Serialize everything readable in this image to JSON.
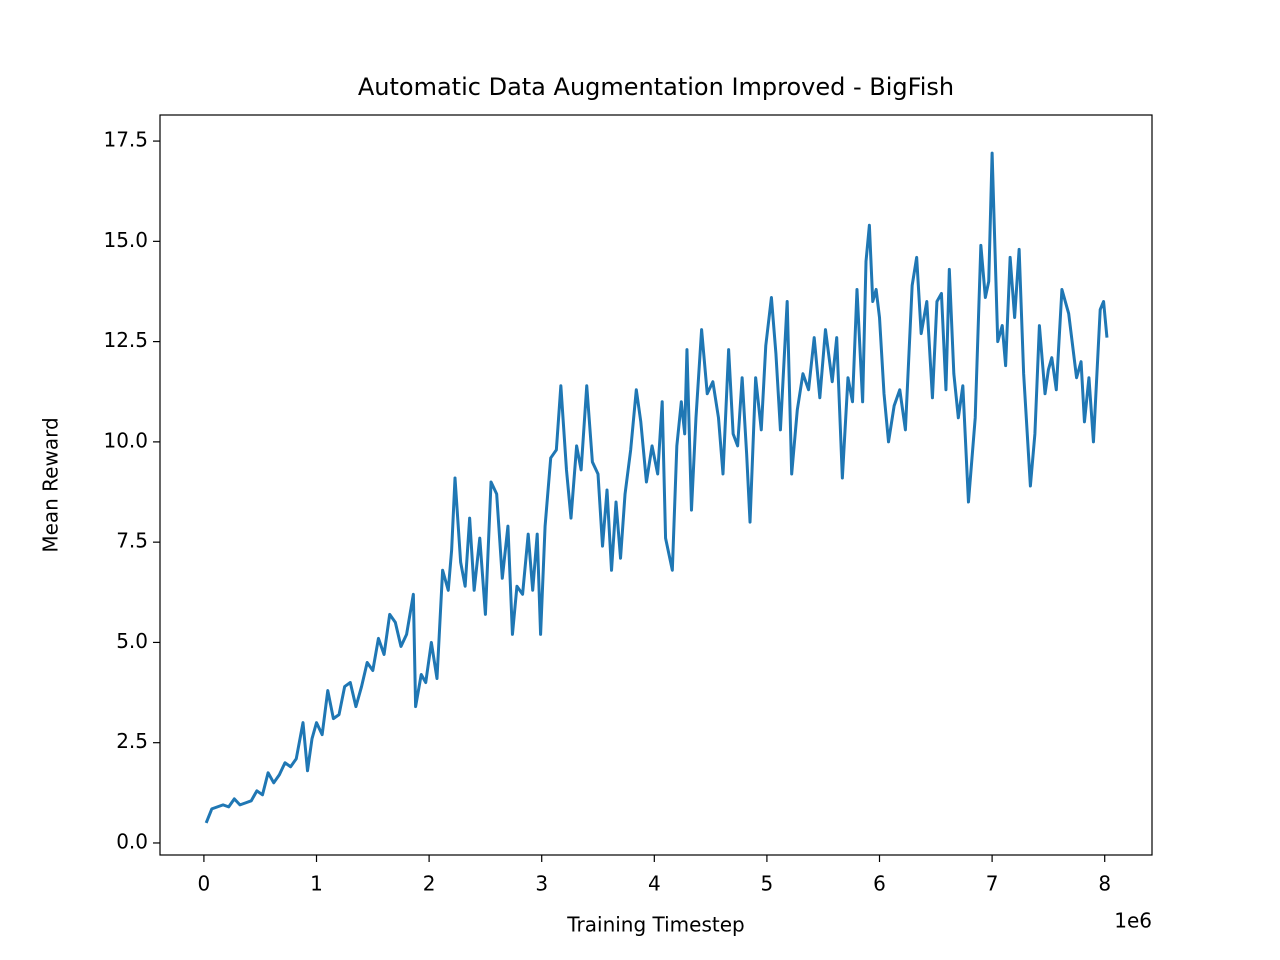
{
  "chart_data": {
    "type": "line",
    "title": "Automatic Data Augmentation Improved - BigFish",
    "x_label": "Training Timestep",
    "y_label": "Mean Reward",
    "x_offset_label": "1e6",
    "color": "#1f77b4",
    "grid": false,
    "x": [
      0.02,
      0.07,
      0.12,
      0.17,
      0.22,
      0.27,
      0.32,
      0.37,
      0.42,
      0.47,
      0.52,
      0.57,
      0.62,
      0.67,
      0.72,
      0.77,
      0.82,
      0.88,
      0.92,
      0.96,
      1.0,
      1.05,
      1.1,
      1.15,
      1.2,
      1.25,
      1.3,
      1.35,
      1.4,
      1.45,
      1.5,
      1.55,
      1.6,
      1.65,
      1.7,
      1.75,
      1.8,
      1.86,
      1.88,
      1.93,
      1.97,
      2.02,
      2.07,
      2.12,
      2.17,
      2.2,
      2.23,
      2.28,
      2.32,
      2.36,
      2.4,
      2.45,
      2.5,
      2.55,
      2.6,
      2.65,
      2.7,
      2.74,
      2.78,
      2.83,
      2.88,
      2.92,
      2.96,
      2.99,
      3.03,
      3.08,
      3.13,
      3.17,
      3.22,
      3.26,
      3.31,
      3.35,
      3.4,
      3.45,
      3.5,
      3.54,
      3.58,
      3.62,
      3.66,
      3.7,
      3.74,
      3.79,
      3.84,
      3.88,
      3.93,
      3.98,
      4.03,
      4.07,
      4.1,
      4.16,
      4.2,
      4.24,
      4.27,
      4.29,
      4.33,
      4.37,
      4.42,
      4.47,
      4.52,
      4.57,
      4.61,
      4.66,
      4.7,
      4.74,
      4.78,
      4.82,
      4.85,
      4.9,
      4.95,
      4.99,
      5.04,
      5.08,
      5.12,
      5.18,
      5.22,
      5.27,
      5.32,
      5.37,
      5.42,
      5.47,
      5.52,
      5.58,
      5.62,
      5.67,
      5.72,
      5.76,
      5.8,
      5.85,
      5.88,
      5.91,
      5.94,
      5.97,
      6.0,
      6.04,
      6.08,
      6.13,
      6.18,
      6.23,
      6.29,
      6.33,
      6.37,
      6.42,
      6.47,
      6.51,
      6.55,
      6.59,
      6.62,
      6.66,
      6.7,
      6.74,
      6.79,
      6.85,
      6.9,
      6.94,
      6.97,
      7.0,
      7.05,
      7.09,
      7.12,
      7.16,
      7.2,
      7.24,
      7.28,
      7.34,
      7.38,
      7.42,
      7.47,
      7.5,
      7.53,
      7.57,
      7.62,
      7.68,
      7.75,
      7.79,
      7.82,
      7.86,
      7.9,
      7.96,
      7.99,
      8.02
    ],
    "values": [
      0.5,
      0.85,
      0.9,
      0.95,
      0.9,
      1.1,
      0.95,
      1.0,
      1.05,
      1.3,
      1.2,
      1.75,
      1.5,
      1.7,
      2.0,
      1.9,
      2.1,
      3.0,
      1.8,
      2.6,
      3.0,
      2.7,
      3.8,
      3.1,
      3.2,
      3.9,
      4.0,
      3.4,
      3.9,
      4.5,
      4.3,
      5.1,
      4.7,
      5.7,
      5.5,
      4.9,
      5.2,
      6.2,
      3.4,
      4.2,
      4.0,
      5.0,
      4.1,
      6.8,
      6.3,
      7.3,
      9.1,
      7.0,
      6.4,
      8.1,
      6.3,
      7.6,
      5.7,
      9.0,
      8.7,
      6.6,
      7.9,
      5.2,
      6.4,
      6.2,
      7.7,
      6.3,
      7.7,
      5.2,
      7.9,
      9.6,
      9.8,
      11.4,
      9.3,
      8.1,
      9.9,
      9.3,
      11.4,
      9.5,
      9.2,
      7.4,
      8.8,
      6.8,
      8.5,
      7.1,
      8.7,
      9.8,
      11.3,
      10.5,
      9.0,
      9.9,
      9.2,
      11.0,
      7.6,
      6.8,
      9.9,
      11.0,
      10.2,
      12.3,
      8.3,
      10.6,
      12.8,
      11.2,
      11.5,
      10.6,
      9.2,
      12.3,
      10.2,
      9.9,
      11.6,
      9.7,
      8.0,
      11.6,
      10.3,
      12.4,
      13.6,
      12.2,
      10.3,
      13.5,
      9.2,
      10.8,
      11.7,
      11.3,
      12.6,
      11.1,
      12.8,
      11.5,
      12.6,
      9.1,
      11.6,
      11.0,
      13.8,
      11.0,
      14.5,
      15.4,
      13.5,
      13.8,
      13.1,
      11.2,
      10.0,
      10.9,
      11.3,
      10.3,
      13.9,
      14.6,
      12.7,
      13.5,
      11.1,
      13.5,
      13.7,
      11.3,
      14.3,
      11.7,
      10.6,
      11.4,
      8.5,
      10.6,
      14.9,
      13.6,
      14.0,
      17.2,
      12.5,
      12.9,
      11.9,
      14.6,
      13.1,
      14.8,
      11.7,
      8.9,
      10.2,
      12.9,
      11.2,
      11.8,
      12.1,
      11.3,
      13.8,
      13.2,
      11.6,
      12.0,
      10.5,
      11.6,
      10.0,
      13.3,
      13.5,
      12.6
    ],
    "xlim": [
      -0.39,
      8.42
    ],
    "ylim": [
      -0.3,
      18.15
    ],
    "xticks": [
      0,
      1,
      2,
      3,
      4,
      5,
      6,
      7,
      8
    ],
    "yticks": [
      {
        "value": 0,
        "label": "0.0"
      },
      2.5,
      {
        "value": 5,
        "label": "5.0"
      },
      7.5,
      {
        "value": 10,
        "label": "10.0"
      },
      12.5,
      {
        "value": 15,
        "label": "15.0"
      },
      17.5
    ]
  }
}
